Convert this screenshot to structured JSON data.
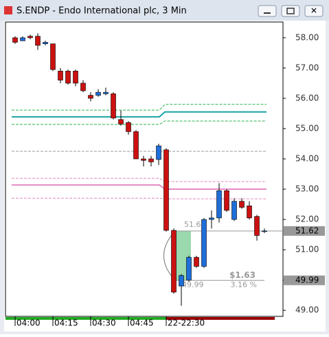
{
  "window_title": "S.ENDP - Endo International plc, 3 Min",
  "chart_data": {
    "type": "candlestick",
    "categories": [
      "04:00",
      null,
      null,
      null,
      null,
      "04:15",
      null,
      null,
      null,
      null,
      "04:30",
      null,
      null,
      null,
      null,
      "04:45",
      null,
      null,
      null,
      null,
      "22-22:30",
      null,
      null,
      null,
      null,
      null,
      null,
      null,
      null,
      null,
      null,
      null,
      null,
      null
    ],
    "open": [
      58.0,
      57.9,
      58.05,
      58.05,
      57.8,
      57.8,
      56.9,
      56.9,
      56.9,
      56.5,
      56.1,
      56.1,
      56.15,
      56.15,
      55.3,
      55.2,
      54.9,
      54.0,
      54.0,
      53.98,
      54.3,
      51.64,
      49.8,
      50.0,
      50.75,
      50.45,
      52.0,
      52.05,
      52.95,
      52.0,
      52.6,
      52.45,
      52.1,
      51.62
    ],
    "high": [
      58.05,
      58.05,
      58.1,
      58.15,
      57.9,
      57.8,
      57.0,
      56.95,
      56.95,
      56.6,
      56.2,
      56.3,
      56.35,
      56.2,
      55.6,
      55.25,
      54.95,
      54.1,
      54.1,
      54.5,
      54.35,
      51.7,
      50.2,
      50.8,
      50.8,
      52.05,
      52.3,
      53.2,
      53.0,
      52.7,
      52.7,
      52.6,
      52.15,
      51.7
    ],
    "low": [
      57.8,
      57.9,
      57.95,
      57.6,
      57.75,
      56.9,
      56.5,
      56.45,
      56.4,
      56.2,
      55.9,
      56.05,
      56.1,
      55.3,
      55.1,
      54.8,
      54.0,
      53.75,
      53.75,
      53.8,
      51.6,
      49.55,
      49.15,
      49.95,
      50.4,
      50.4,
      51.7,
      51.9,
      52.25,
      51.95,
      52.35,
      52.0,
      51.3,
      51.55
    ],
    "close": [
      57.85,
      58.0,
      58.0,
      57.75,
      57.85,
      56.95,
      56.6,
      56.5,
      56.5,
      56.25,
      56.0,
      56.2,
      56.2,
      55.35,
      55.15,
      54.9,
      54.0,
      53.95,
      53.9,
      54.43,
      51.64,
      49.6,
      50.15,
      50.75,
      50.45,
      52.0,
      52.05,
      52.95,
      52.3,
      52.6,
      52.4,
      52.05,
      51.47,
      51.62
    ],
    "up_color": "#1e6fd9",
    "down_color": "#cc1111",
    "ylim": [
      48.8,
      58.52
    ],
    "yticks": [
      {
        "value": 49,
        "label": "49.00"
      },
      {
        "value": 50,
        "label": "50.00"
      },
      {
        "value": 51,
        "label": "51.00"
      },
      {
        "value": 52,
        "label": "52.00"
      },
      {
        "value": 53,
        "label": "53.00"
      },
      {
        "value": 54,
        "label": "54.00"
      },
      {
        "value": 55,
        "label": "55.00"
      },
      {
        "value": 56,
        "label": "56.00"
      },
      {
        "value": 57,
        "label": "57.00"
      },
      {
        "value": 58,
        "label": "58.00"
      }
    ],
    "overlays": [
      {
        "color": "#2db34a",
        "dashed": true,
        "values": [
          55.61,
          55.8
        ]
      },
      {
        "color": "#2db34a",
        "dashed": true,
        "values": [
          55.14,
          55.25
        ]
      },
      {
        "color": "#1aa3a3",
        "dashed": false,
        "values": [
          55.39,
          55.55
        ]
      },
      {
        "color": "#999999",
        "dashed": true,
        "values": [
          54.25,
          54.25
        ]
      },
      {
        "color": "#e68ac4",
        "dashed": true,
        "values": [
          53.36,
          53.25
        ]
      },
      {
        "color": "#e68ac4",
        "dashed": false,
        "values": [
          53.14,
          53.0
        ]
      },
      {
        "color": "#e68ac4",
        "dashed": true,
        "values": [
          52.7,
          52.68
        ]
      }
    ],
    "price_markers": [
      51.62,
      49.99
    ],
    "measurement": {
      "start": 51.62,
      "end": 49.99,
      "change_label": "$1.63",
      "percent_label": "3.16 %"
    }
  }
}
